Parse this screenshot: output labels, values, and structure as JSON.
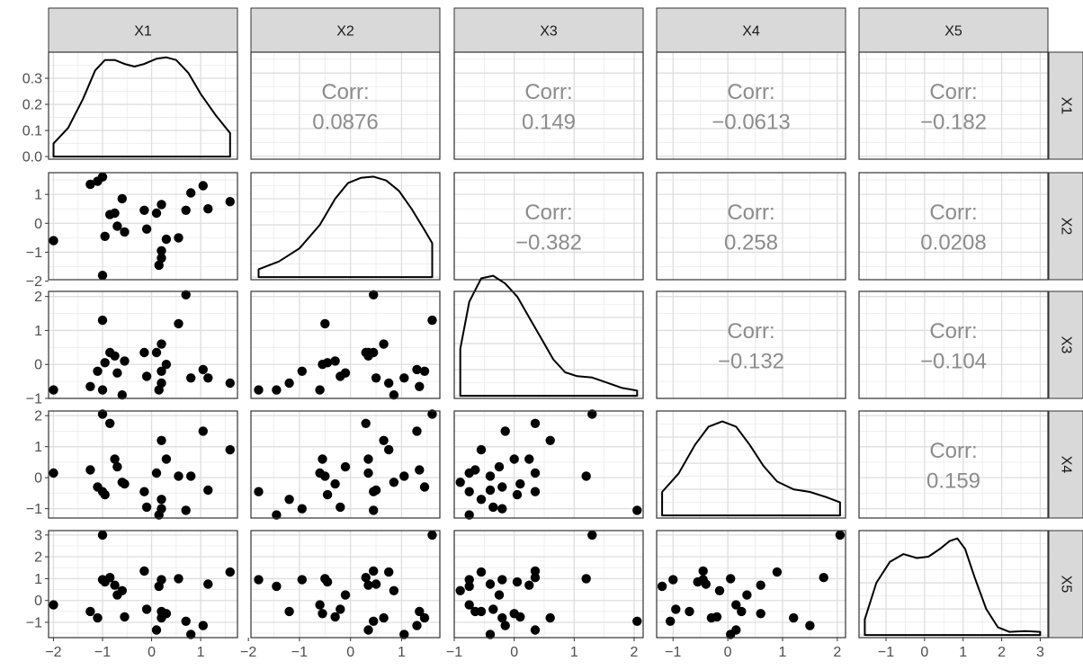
{
  "chart_data": {
    "type": "scatter",
    "variables": [
      "X1",
      "X2",
      "X3",
      "X4",
      "X5"
    ],
    "corr_label": "Corr:",
    "correlations": [
      {
        "row": "X2",
        "col": "X1",
        "value": "0.0876"
      },
      {
        "row": "X3",
        "col": "X1",
        "value": "0.149"
      },
      {
        "row": "X4",
        "col": "X1",
        "value": "−0.0613"
      },
      {
        "row": "X5",
        "col": "X1",
        "value": "−0.182"
      },
      {
        "row": "X3",
        "col": "X2",
        "value": "−0.382"
      },
      {
        "row": "X4",
        "col": "X2",
        "value": "0.258"
      },
      {
        "row": "X5",
        "col": "X2",
        "value": "0.0208"
      },
      {
        "row": "X4",
        "col": "X3",
        "value": "−0.132"
      },
      {
        "row": "X5",
        "col": "X3",
        "value": "−0.104"
      },
      {
        "row": "X5",
        "col": "X4",
        "value": "0.159"
      }
    ],
    "observations": [
      {
        "X1": -2.0,
        "X2": -0.6,
        "X3": -0.75,
        "X4": 0.15,
        "X5": -0.2
      },
      {
        "X1": -1.25,
        "X2": 1.35,
        "X3": -0.65,
        "X4": 0.25,
        "X5": -0.5
      },
      {
        "X1": -1.1,
        "X2": 1.45,
        "X3": -0.2,
        "X4": -0.3,
        "X5": -0.8
      },
      {
        "X1": -1.0,
        "X2": 1.6,
        "X3": 1.3,
        "X4": 2.05,
        "X5": 3.0
      },
      {
        "X1": -1.0,
        "X2": -1.8,
        "X3": -0.75,
        "X4": -0.45,
        "X5": 0.95
      },
      {
        "X1": -0.95,
        "X2": -0.45,
        "X3": 0.05,
        "X4": -0.55,
        "X5": 0.85
      },
      {
        "X1": -0.85,
        "X2": 0.3,
        "X3": 0.35,
        "X4": 1.75,
        "X5": 1.05
      },
      {
        "X1": -0.75,
        "X2": 0.35,
        "X3": 0.25,
        "X4": 0.6,
        "X5": 0.7
      },
      {
        "X1": -0.7,
        "X2": -0.1,
        "X3": -0.25,
        "X4": 0.35,
        "X5": 0.25
      },
      {
        "X1": -0.6,
        "X2": 0.85,
        "X3": -0.9,
        "X4": -0.15,
        "X5": 0.45
      },
      {
        "X1": -0.55,
        "X2": -0.3,
        "X3": 0.1,
        "X4": -0.2,
        "X5": -0.75
      },
      {
        "X1": -0.15,
        "X2": 0.45,
        "X3": 0.35,
        "X4": -0.45,
        "X5": 1.35
      },
      {
        "X1": -0.1,
        "X2": -0.2,
        "X3": -0.35,
        "X4": -0.95,
        "X5": -0.4
      },
      {
        "X1": 0.1,
        "X2": 0.35,
        "X3": 0.35,
        "X4": 0.15,
        "X5": -1.35
      },
      {
        "X1": 0.15,
        "X2": -1.45,
        "X3": -0.75,
        "X4": -1.2,
        "X5": 0.65
      },
      {
        "X1": 0.2,
        "X2": -1.2,
        "X3": -0.55,
        "X4": -0.7,
        "X5": -0.5
      },
      {
        "X1": 0.2,
        "X2": -0.95,
        "X3": -0.2,
        "X4": -1.0,
        "X5": 0.95
      },
      {
        "X1": 0.2,
        "X2": 0.65,
        "X3": 0.6,
        "X4": 1.2,
        "X5": -0.8
      },
      {
        "X1": 0.3,
        "X2": -0.55,
        "X3": 0.0,
        "X4": 0.6,
        "X5": -0.6
      },
      {
        "X1": 0.55,
        "X2": -0.5,
        "X3": 1.2,
        "X4": 0.05,
        "X5": 1.0
      },
      {
        "X1": 0.7,
        "X2": 0.45,
        "X3": 2.05,
        "X4": -1.05,
        "X5": -0.95
      },
      {
        "X1": 0.8,
        "X2": 1.05,
        "X3": -0.4,
        "X4": 0.05,
        "X5": -1.55
      },
      {
        "X1": 1.05,
        "X2": 1.3,
        "X3": -0.15,
        "X4": 1.5,
        "X5": -1.15
      },
      {
        "X1": 1.15,
        "X2": 0.5,
        "X3": -0.4,
        "X4": -0.4,
        "X5": 0.75
      },
      {
        "X1": 1.6,
        "X2": 0.75,
        "X3": -0.55,
        "X4": 0.9,
        "X5": 1.3
      }
    ],
    "axes": {
      "X1": {
        "range": [
          -2.1,
          1.75
        ],
        "ticks": [
          -2,
          -1,
          0,
          1
        ],
        "tick_labels": [
          "−2",
          "−1",
          "0",
          "1"
        ]
      },
      "X2": {
        "range": [
          -1.95,
          1.75
        ],
        "ticks": [
          -2,
          -1,
          0,
          1
        ],
        "tick_labels": [
          "−2",
          "−1",
          "0",
          "1"
        ]
      },
      "X3": {
        "range": [
          -1.0,
          2.15
        ],
        "ticks": [
          -1,
          0,
          1,
          2
        ],
        "tick_labels": [
          "−1",
          "0",
          "1",
          "2"
        ]
      },
      "X4": {
        "range": [
          -1.3,
          2.15
        ],
        "ticks": [
          -1,
          0,
          1,
          2
        ],
        "tick_labels": [
          "−1",
          "0",
          "1",
          "2"
        ]
      },
      "X5": {
        "range": [
          -1.7,
          3.2
        ],
        "ticks": [
          -1,
          0,
          1,
          2,
          3
        ],
        "tick_labels": [
          "−1",
          "0",
          "1",
          "2",
          "3"
        ]
      }
    },
    "density_axis": {
      "range": [
        -0.01,
        0.4
      ],
      "ticks": [
        0.0,
        0.1,
        0.2,
        0.3
      ],
      "tick_labels": [
        "0.0",
        "0.1",
        "0.2",
        "0.3"
      ]
    },
    "densities": {
      "X1": [
        [
          -2.0,
          0.05
        ],
        [
          -1.7,
          0.11
        ],
        [
          -1.4,
          0.22
        ],
        [
          -1.15,
          0.33
        ],
        [
          -0.95,
          0.37
        ],
        [
          -0.75,
          0.37
        ],
        [
          -0.55,
          0.355
        ],
        [
          -0.35,
          0.345
        ],
        [
          -0.15,
          0.355
        ],
        [
          0.1,
          0.375
        ],
        [
          0.3,
          0.38
        ],
        [
          0.5,
          0.37
        ],
        [
          0.75,
          0.32
        ],
        [
          1.0,
          0.24
        ],
        [
          1.3,
          0.16
        ],
        [
          1.6,
          0.09
        ]
      ],
      "X2": [
        [
          -1.8,
          0.03
        ],
        [
          -1.4,
          0.06
        ],
        [
          -1.0,
          0.11
        ],
        [
          -0.6,
          0.2
        ],
        [
          -0.3,
          0.3
        ],
        [
          -0.05,
          0.36
        ],
        [
          0.2,
          0.38
        ],
        [
          0.45,
          0.385
        ],
        [
          0.7,
          0.37
        ],
        [
          0.95,
          0.33
        ],
        [
          1.2,
          0.26
        ],
        [
          1.45,
          0.18
        ],
        [
          1.6,
          0.13
        ]
      ],
      "X3": [
        [
          -0.9,
          0.18
        ],
        [
          -0.75,
          0.36
        ],
        [
          -0.55,
          0.45
        ],
        [
          -0.35,
          0.46
        ],
        [
          -0.15,
          0.43
        ],
        [
          0.05,
          0.38
        ],
        [
          0.25,
          0.3
        ],
        [
          0.45,
          0.22
        ],
        [
          0.65,
          0.14
        ],
        [
          0.85,
          0.09
        ],
        [
          1.05,
          0.075
        ],
        [
          1.3,
          0.07
        ],
        [
          1.55,
          0.05
        ],
        [
          1.8,
          0.03
        ],
        [
          2.05,
          0.02
        ]
      ],
      "X4": [
        [
          -1.2,
          0.09
        ],
        [
          -0.9,
          0.16
        ],
        [
          -0.6,
          0.27
        ],
        [
          -0.35,
          0.34
        ],
        [
          -0.1,
          0.36
        ],
        [
          0.15,
          0.34
        ],
        [
          0.4,
          0.27
        ],
        [
          0.65,
          0.19
        ],
        [
          0.9,
          0.13
        ],
        [
          1.2,
          0.1
        ],
        [
          1.5,
          0.09
        ],
        [
          1.8,
          0.07
        ],
        [
          2.05,
          0.05
        ]
      ],
      "X5": [
        [
          -1.55,
          0.06
        ],
        [
          -1.25,
          0.2
        ],
        [
          -0.9,
          0.28
        ],
        [
          -0.55,
          0.31
        ],
        [
          -0.2,
          0.295
        ],
        [
          0.1,
          0.3
        ],
        [
          0.4,
          0.33
        ],
        [
          0.65,
          0.36
        ],
        [
          0.85,
          0.37
        ],
        [
          1.05,
          0.33
        ],
        [
          1.3,
          0.22
        ],
        [
          1.6,
          0.1
        ],
        [
          1.9,
          0.03
        ],
        [
          2.2,
          0.012
        ],
        [
          2.6,
          0.015
        ],
        [
          3.0,
          0.012
        ]
      ]
    },
    "density_ylim": [
      0,
      0.4
    ],
    "grid": true
  }
}
